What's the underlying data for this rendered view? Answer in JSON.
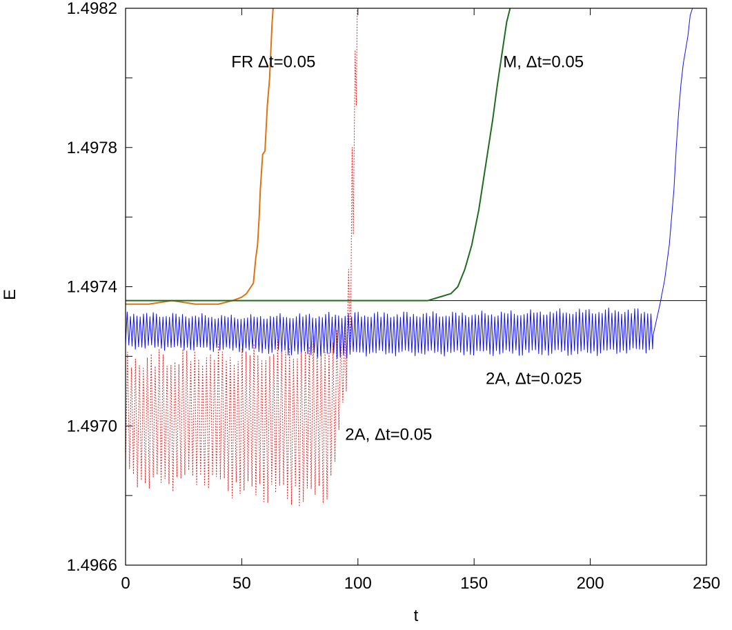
{
  "chart_data": {
    "type": "line",
    "xlabel": "t",
    "ylabel": "E",
    "xlim": [
      0,
      250
    ],
    "ylim": [
      1.4966,
      1.4982
    ],
    "x_ticks": [
      {
        "value": 0,
        "label": "0"
      },
      {
        "value": 50,
        "label": "50"
      },
      {
        "value": 100,
        "label": "100"
      },
      {
        "value": 150,
        "label": "150"
      },
      {
        "value": 200,
        "label": "200"
      },
      {
        "value": 250,
        "label": "250"
      }
    ],
    "y_ticks": [
      {
        "value": 1.4966,
        "label": "1.4966"
      },
      {
        "value": 1.4968,
        "label": ""
      },
      {
        "value": 1.497,
        "label": "1.4970"
      },
      {
        "value": 1.4972,
        "label": ""
      },
      {
        "value": 1.4974,
        "label": "1.4974"
      },
      {
        "value": 1.4976,
        "label": ""
      },
      {
        "value": 1.4978,
        "label": "1.4978"
      },
      {
        "value": 1.498,
        "label": ""
      },
      {
        "value": 1.4982,
        "label": "1.4982"
      }
    ],
    "reference_line": {
      "y": 1.49736,
      "color": "#000000"
    },
    "series": [
      {
        "id": "fr",
        "color": "#e07010",
        "dashed": false,
        "x": [
          0,
          10,
          20,
          30,
          40,
          46,
          50,
          52,
          54,
          55,
          56,
          56.8,
          57.5,
          58,
          59,
          60,
          61,
          62,
          63,
          63.5
        ],
        "y": [
          1.49735,
          1.49735,
          1.49736,
          1.49735,
          1.49735,
          1.49736,
          1.49737,
          1.49738,
          1.4974,
          1.49741,
          1.49748,
          1.49752,
          1.4976,
          1.49768,
          1.49778,
          1.49779,
          1.49792,
          1.498,
          1.49815,
          1.4982
        ]
      },
      {
        "id": "m",
        "color": "#1e6b1e",
        "dashed": false,
        "x": [
          0,
          50,
          100,
          130,
          135,
          140,
          143,
          146,
          149,
          152,
          155,
          158,
          160,
          162,
          164,
          165.5
        ],
        "y": [
          1.49736,
          1.49736,
          1.49736,
          1.49736,
          1.49737,
          1.49738,
          1.4974,
          1.49745,
          1.49752,
          1.49762,
          1.49775,
          1.49788,
          1.49798,
          1.49807,
          1.49816,
          1.4982
        ]
      },
      {
        "id": "2a-05",
        "color": "#e02020",
        "dashed": true,
        "osc": {
          "x_start": 0,
          "x_end": 95,
          "period": 1.7,
          "upper": [
            [
              0,
              1.49722
            ],
            [
              50,
              1.49724
            ],
            [
              80,
              1.49726
            ],
            [
              90,
              1.49728
            ],
            [
              95,
              1.4973
            ]
          ],
          "lower": [
            [
              0,
              1.49684
            ],
            [
              10,
              1.4968
            ],
            [
              30,
              1.49682
            ],
            [
              50,
              1.49678
            ],
            [
              70,
              1.49676
            ],
            [
              80,
              1.49675
            ],
            [
              88,
              1.49678
            ],
            [
              95,
              1.4971
            ]
          ]
        },
        "tail": {
          "x": [
            95,
            96,
            96.8,
            97.5,
            98,
            98.8,
            99.3,
            99.7
          ],
          "y": [
            1.4971,
            1.49745,
            1.49722,
            1.4978,
            1.49755,
            1.49808,
            1.49792,
            1.4982
          ]
        }
      },
      {
        "id": "2a-025",
        "color": "#1010ee",
        "dashed": false,
        "osc": {
          "x_start": 0,
          "x_end": 227,
          "period": 1.4,
          "upper": [
            [
              0,
              1.49733
            ],
            [
              50,
              1.49732
            ],
            [
              100,
              1.49733
            ],
            [
              150,
              1.49733
            ],
            [
              200,
              1.49734
            ],
            [
              227,
              1.49734
            ]
          ],
          "lower": [
            [
              0,
              1.49722
            ],
            [
              50,
              1.49721
            ],
            [
              95,
              1.49719
            ],
            [
              100,
              1.4972
            ],
            [
              150,
              1.4972
            ],
            [
              200,
              1.4972
            ],
            [
              227,
              1.49721
            ]
          ]
        },
        "tail": {
          "x": [
            227,
            230,
            232,
            234,
            236,
            237,
            238,
            239,
            240,
            241,
            242,
            243,
            244
          ],
          "y": [
            1.49726,
            1.49735,
            1.49742,
            1.49752,
            1.49768,
            1.4978,
            1.4979,
            1.49798,
            1.49804,
            1.49808,
            1.49812,
            1.49818,
            1.4982
          ]
        }
      }
    ],
    "annotations": [
      {
        "text": "FR  Δt=0.05",
        "x": 45.5,
        "y": 1.49803
      },
      {
        "text": "M, Δt=0.05",
        "x": 162.5,
        "y": 1.49803
      },
      {
        "text": "2A, Δt=0.025",
        "x": 155,
        "y": 1.49712
      },
      {
        "text": "2A, Δt=0.05",
        "x": 94.5,
        "y": 1.49696
      }
    ]
  }
}
